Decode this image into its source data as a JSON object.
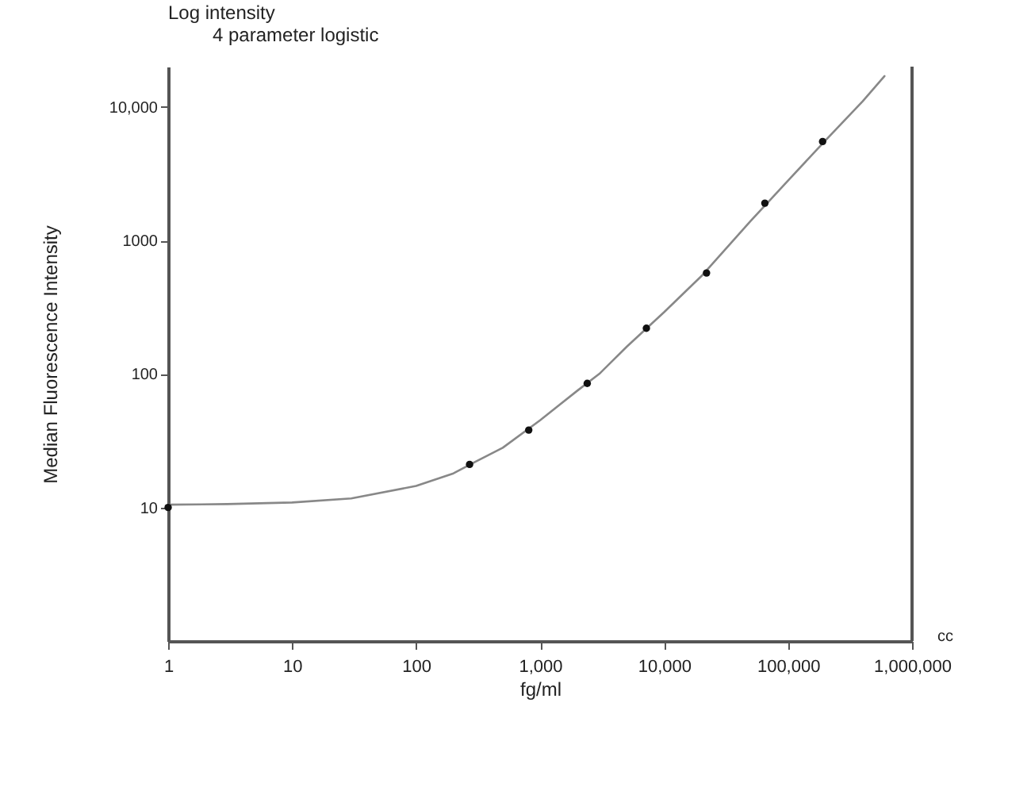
{
  "chart_data": {
    "type": "line",
    "xlabel": "fg/ml",
    "ylabel": "Median Fluorescence Intensity",
    "log": "xy",
    "grid": false,
    "xlim": [
      1,
      1000000
    ],
    "ylim": [
      1,
      20000
    ],
    "xticks": [
      1,
      10,
      100,
      {
        "value": 1000,
        "label": "1,000"
      },
      {
        "value": 10000,
        "label": "10,000"
      },
      {
        "value": 100000,
        "label": "100,000"
      },
      {
        "value": 1000000,
        "label": "1,000,000"
      }
    ],
    "yticks": [
      10,
      100,
      1000,
      {
        "value": 10000,
        "label": "10,000"
      }
    ],
    "annotations": [
      "Log intensity",
      "4 parameter logistic",
      "cc"
    ],
    "ref_lines": [
      {
        "axis": "x",
        "value": 1000000,
        "color": "#555555"
      }
    ],
    "series": [
      {
        "color": "#888888",
        "x": [
          1,
          3,
          10,
          30,
          100,
          200,
          300,
          500,
          1000,
          2000,
          3000,
          5000,
          10000,
          20000,
          50000,
          100000,
          200000,
          400000,
          600000
        ],
        "values": [
          10.5,
          10.6,
          10.9,
          11.7,
          14.5,
          18,
          22,
          28,
          45,
          75,
          100,
          160,
          290,
          540,
          1400,
          2800,
          5600,
          11000,
          17000
        ]
      },
      {
        "type": "scatter",
        "color": "#111111",
        "x": [
          1,
          270,
          810,
          2400,
          7200,
          22000,
          65000,
          190000
        ],
        "values": [
          10,
          21,
          38,
          85,
          220,
          570,
          1900,
          5500
        ]
      }
    ]
  }
}
